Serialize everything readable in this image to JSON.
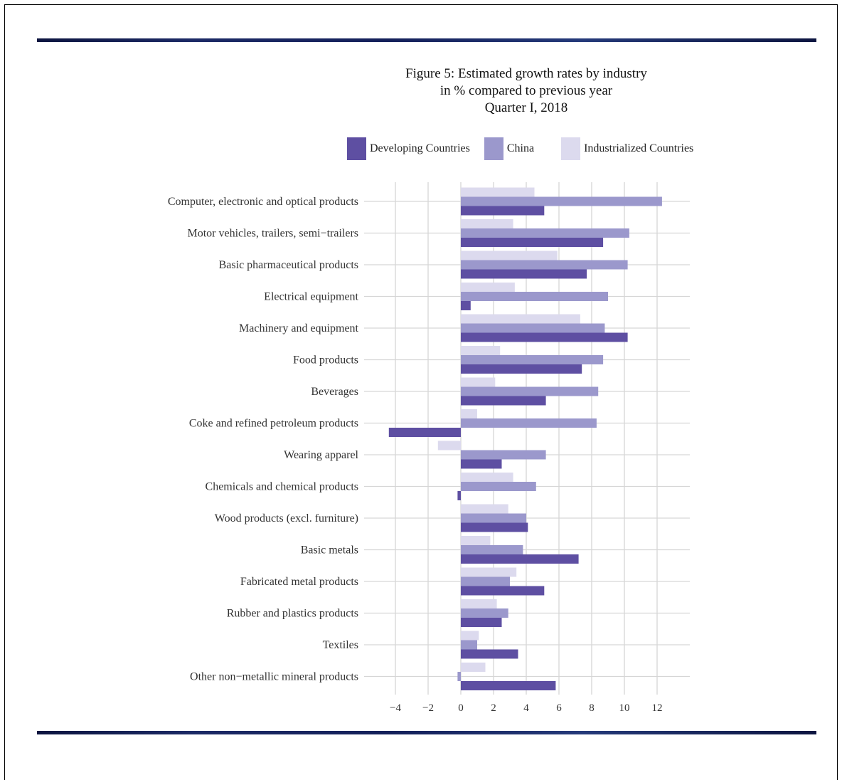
{
  "title": {
    "line1": "Figure 5: Estimated growth rates by industry",
    "line2": "in % compared to previous year",
    "line3": "Quarter I, 2018"
  },
  "legend": [
    {
      "label": "Developing Countries",
      "color": "#5e4fa2"
    },
    {
      "label": "China",
      "color": "#9b98cc"
    },
    {
      "label": "Industrialized Countries",
      "color": "#dcdaee"
    }
  ],
  "chart_data": {
    "type": "bar",
    "orientation": "horizontal",
    "title": "Figure 5: Estimated growth rates by industry in % compared to previous year Quarter I, 2018",
    "xlim": [
      -4.5,
      13.5
    ],
    "xticks": [
      -4,
      -2,
      0,
      2,
      4,
      6,
      8,
      10,
      12
    ],
    "grid": true,
    "legend_position": "top",
    "categories": [
      "Computer, electronic and optical products",
      "Motor vehicles, trailers, semi−trailers",
      "Basic pharmaceutical products",
      "Electrical equipment",
      "Machinery and equipment",
      "Food products",
      "Beverages",
      "Coke and refined petroleum products",
      "Wearing apparel",
      "Chemicals and chemical products",
      "Wood products (excl. furniture)",
      "Basic metals",
      "Fabricated metal products",
      "Rubber and plastics products",
      "Textiles",
      "Other non−metallic mineral products"
    ],
    "series": [
      {
        "name": "Industrialized Countries",
        "color": "#dcdaee",
        "values": [
          4.5,
          3.2,
          5.9,
          3.3,
          7.3,
          2.4,
          2.1,
          1.0,
          -1.4,
          3.2,
          2.9,
          1.8,
          3.4,
          2.2,
          1.1,
          1.5
        ]
      },
      {
        "name": "China",
        "color": "#9b98cc",
        "values": [
          12.3,
          10.3,
          10.2,
          9.0,
          8.8,
          8.7,
          8.4,
          8.3,
          5.2,
          4.6,
          4.0,
          3.8,
          3.0,
          2.9,
          1.0,
          -0.2
        ]
      },
      {
        "name": "Developing Countries",
        "color": "#5e4fa2",
        "values": [
          5.1,
          8.7,
          7.7,
          0.6,
          10.2,
          7.4,
          5.2,
          -4.4,
          2.5,
          -0.2,
          4.1,
          7.2,
          5.1,
          2.5,
          3.5,
          5.8
        ]
      }
    ]
  }
}
